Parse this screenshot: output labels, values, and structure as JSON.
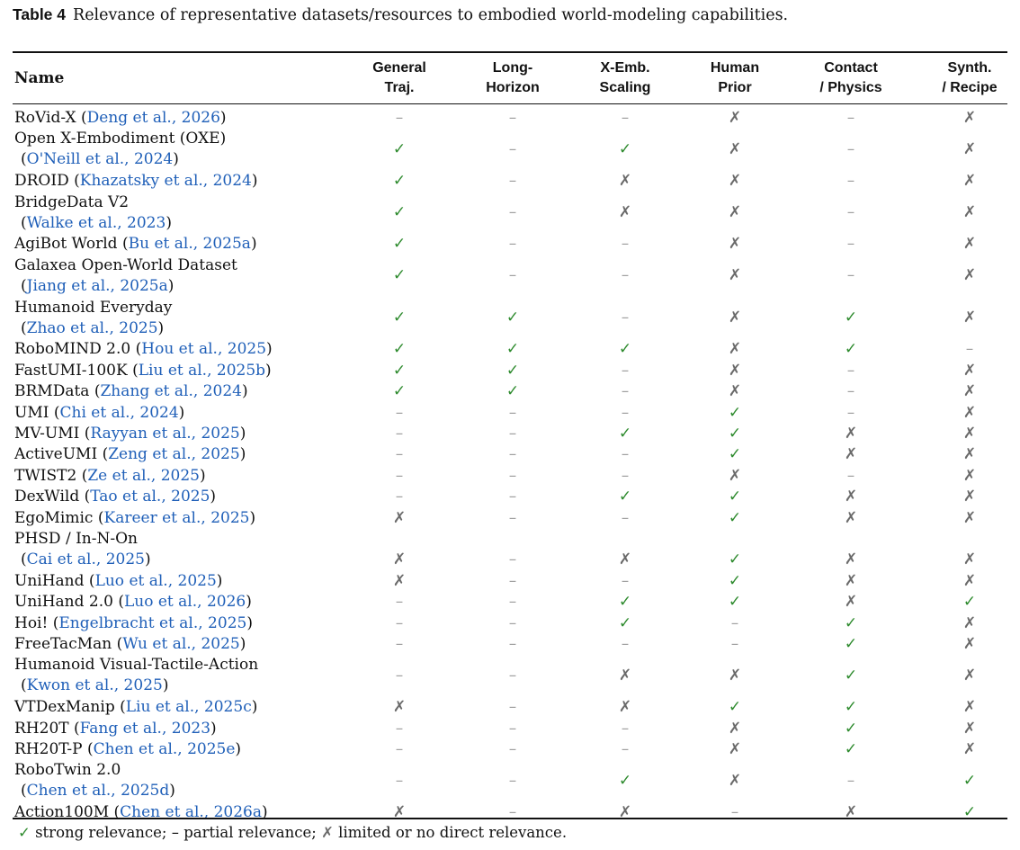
{
  "caption": {
    "label": "Table 4",
    "text": "Relevance of representative datasets/resources to embodied world-modeling capabilities."
  },
  "headers": {
    "name": "Name",
    "cols": [
      [
        "General",
        "Traj."
      ],
      [
        "Long-",
        "Horizon"
      ],
      [
        "X-Emb.",
        "Scaling"
      ],
      [
        "Human",
        "Prior"
      ],
      [
        "Contact",
        "/ Physics"
      ],
      [
        "Synth.",
        "/ Recipe"
      ]
    ]
  },
  "symbols": {
    "check": "✓",
    "dash": "–",
    "cross": "✗"
  },
  "colors": {
    "check": "#2e8b2e",
    "citation": "#1f5fb8",
    "dash": "#a0a0a0",
    "cross": "#6a6a6a"
  },
  "rows": [
    {
      "name": "RoVid-X",
      "cite": "Deng et al., 2026",
      "values": [
        "dash",
        "dash",
        "dash",
        "cross",
        "dash",
        "cross"
      ]
    },
    {
      "name": "Open X-Embodiment (OXE)",
      "cite": "O'Neill et al., 2024",
      "wrap": true,
      "values": [
        "check",
        "dash",
        "check",
        "cross",
        "dash",
        "cross"
      ]
    },
    {
      "name": "DROID",
      "cite": "Khazatsky et al., 2024",
      "values": [
        "check",
        "dash",
        "cross",
        "cross",
        "dash",
        "cross"
      ]
    },
    {
      "name": "BridgeData V2",
      "cite": "Walke et al., 2023",
      "wrap": true,
      "values": [
        "check",
        "dash",
        "cross",
        "cross",
        "dash",
        "cross"
      ]
    },
    {
      "name": "AgiBot World",
      "cite": "Bu et al., 2025a",
      "values": [
        "check",
        "dash",
        "dash",
        "cross",
        "dash",
        "cross"
      ]
    },
    {
      "name": "Galaxea Open-World Dataset",
      "cite": "Jiang et al., 2025a",
      "wrap": true,
      "values": [
        "check",
        "dash",
        "dash",
        "cross",
        "dash",
        "cross"
      ]
    },
    {
      "name": "Humanoid Everyday",
      "cite": "Zhao et al., 2025",
      "wrap": true,
      "values": [
        "check",
        "check",
        "dash",
        "cross",
        "check",
        "cross"
      ]
    },
    {
      "name": "RoboMIND 2.0",
      "cite": "Hou et al., 2025",
      "values": [
        "check",
        "check",
        "check",
        "cross",
        "check",
        "dash"
      ]
    },
    {
      "name": "FastUMI-100K",
      "cite": "Liu et al., 2025b",
      "values": [
        "check",
        "check",
        "dash",
        "cross",
        "dash",
        "cross"
      ]
    },
    {
      "name": "BRMData",
      "cite": "Zhang et al., 2024",
      "values": [
        "check",
        "check",
        "dash",
        "cross",
        "dash",
        "cross"
      ]
    },
    {
      "name": "UMI",
      "cite": "Chi et al., 2024",
      "values": [
        "dash",
        "dash",
        "dash",
        "check",
        "dash",
        "cross"
      ]
    },
    {
      "name": "MV-UMI",
      "cite": "Rayyan et al., 2025",
      "values": [
        "dash",
        "dash",
        "check",
        "check",
        "cross",
        "cross"
      ]
    },
    {
      "name": "ActiveUMI",
      "cite": "Zeng et al., 2025",
      "values": [
        "dash",
        "dash",
        "dash",
        "check",
        "cross",
        "cross"
      ]
    },
    {
      "name": "TWIST2",
      "cite": "Ze et al., 2025",
      "values": [
        "dash",
        "dash",
        "dash",
        "cross",
        "dash",
        "cross"
      ]
    },
    {
      "name": "DexWild",
      "cite": "Tao et al., 2025",
      "values": [
        "dash",
        "dash",
        "check",
        "check",
        "cross",
        "cross"
      ]
    },
    {
      "name": "EgoMimic",
      "cite": "Kareer et al., 2025",
      "values": [
        "cross",
        "dash",
        "dash",
        "check",
        "cross",
        "cross"
      ]
    },
    {
      "name": "PHSD / In-N-On",
      "cite": "Cai et al., 2025",
      "wrap": true,
      "valuesOnSecondLine": true,
      "values": [
        "cross",
        "dash",
        "cross",
        "check",
        "cross",
        "cross"
      ]
    },
    {
      "name": "UniHand",
      "cite": "Luo et al., 2025",
      "values": [
        "cross",
        "dash",
        "dash",
        "check",
        "cross",
        "cross"
      ]
    },
    {
      "name": "UniHand 2.0",
      "cite": "Luo et al., 2026",
      "values": [
        "dash",
        "dash",
        "check",
        "check",
        "cross",
        "check"
      ]
    },
    {
      "name": "Hoi!",
      "cite": "Engelbracht et al., 2025",
      "values": [
        "dash",
        "dash",
        "check",
        "dash",
        "check",
        "cross"
      ]
    },
    {
      "name": "FreeTacMan",
      "cite": "Wu et al., 2025",
      "values": [
        "dash",
        "dash",
        "dash",
        "dash",
        "check",
        "cross"
      ]
    },
    {
      "name": "Humanoid Visual-Tactile-Action",
      "cite": "Kwon et al., 2025",
      "wrap": true,
      "values": [
        "dash",
        "dash",
        "cross",
        "cross",
        "check",
        "cross"
      ]
    },
    {
      "name": "VTDexManip",
      "cite": "Liu et al., 2025c",
      "values": [
        "cross",
        "dash",
        "cross",
        "check",
        "check",
        "cross"
      ]
    },
    {
      "name": "RH20T",
      "cite": "Fang et al., 2023",
      "values": [
        "dash",
        "dash",
        "dash",
        "cross",
        "check",
        "cross"
      ]
    },
    {
      "name": "RH20T-P",
      "cite": "Chen et al., 2025e",
      "values": [
        "dash",
        "dash",
        "dash",
        "cross",
        "check",
        "cross"
      ]
    },
    {
      "name": "RoboTwin 2.0",
      "cite": "Chen et al., 2025d",
      "wrap": true,
      "values": [
        "dash",
        "dash",
        "check",
        "cross",
        "dash",
        "check"
      ]
    },
    {
      "name": "Action100M",
      "cite": "Chen et al., 2026a",
      "values": [
        "cross",
        "dash",
        "cross",
        "dash",
        "cross",
        "check"
      ]
    }
  ],
  "legend": {
    "check_text": "strong relevance;",
    "dash_text": "partial relevance;",
    "cross_text": "limited or no direct relevance."
  }
}
